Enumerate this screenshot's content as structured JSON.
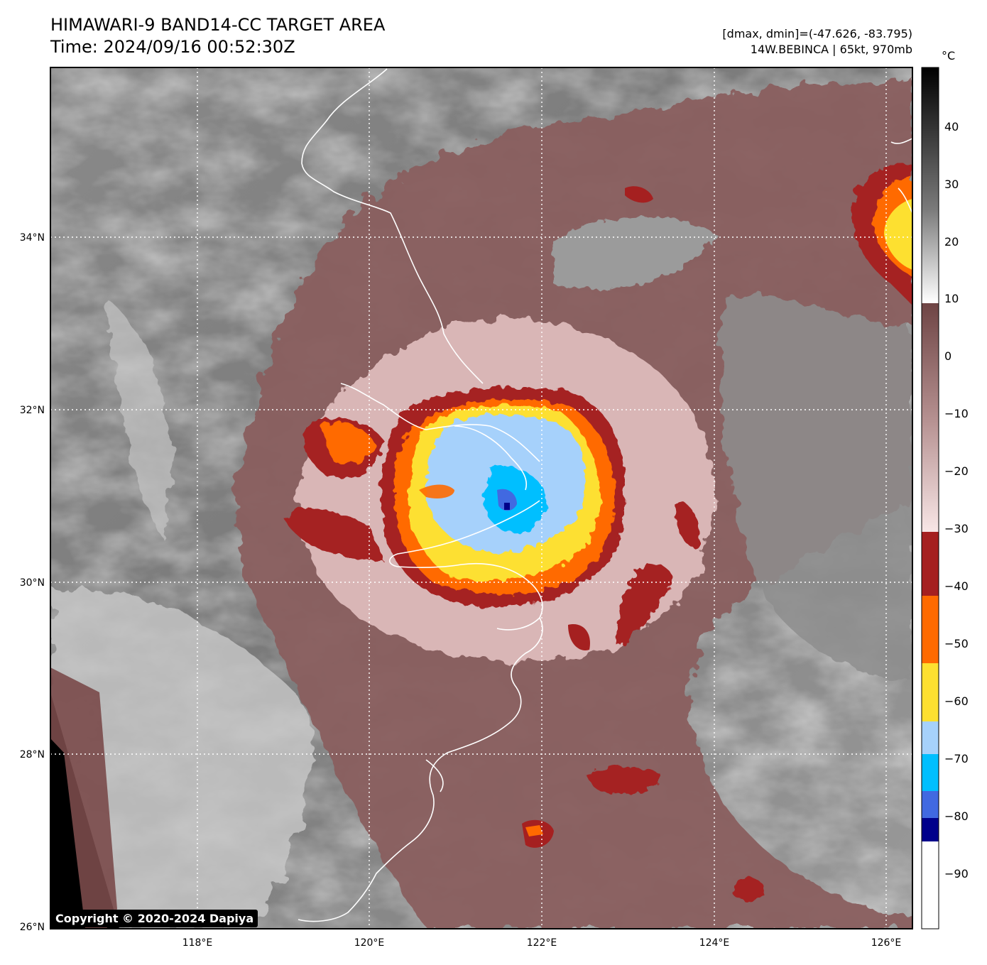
{
  "header": {
    "title": "HIMAWARI-9 BAND14-CC TARGET AREA",
    "time": "Time: 2024/09/16 00:52:30Z",
    "dminmax": "[dmax, dmin]=(-47.626, -83.795)",
    "storm": "14W.BEBINCA | 65kt, 970mb"
  },
  "map": {
    "lat_labels": [
      "34°N",
      "32°N",
      "30°N",
      "28°N",
      "26°N"
    ],
    "lon_labels": [
      "118°E",
      "120°E",
      "122°E",
      "124°E",
      "126°E"
    ],
    "coastline_color": "#ffffff",
    "grid_style": "dotted white"
  },
  "colorbar": {
    "unit": "°C",
    "tick_labels": [
      "40",
      "30",
      "20",
      "10",
      "0",
      "−10",
      "−20",
      "−30",
      "−40",
      "−50",
      "−60",
      "−70",
      "−80",
      "−90"
    ],
    "colors": {
      "warm_gray": "#808080",
      "brown": "#7a4a4a",
      "pink": "#f2d9d9",
      "dark_red": "#a52020",
      "orange": "#ff6a00",
      "yellow": "#fde030",
      "light_blue": "#a6d1fb",
      "cyan": "#00bfff",
      "royal_blue": "#4169e1",
      "navy": "#00008b",
      "white": "#ffffff"
    }
  },
  "footer": {
    "copyright": "Copyright © 2020-2024 Dapiya"
  }
}
